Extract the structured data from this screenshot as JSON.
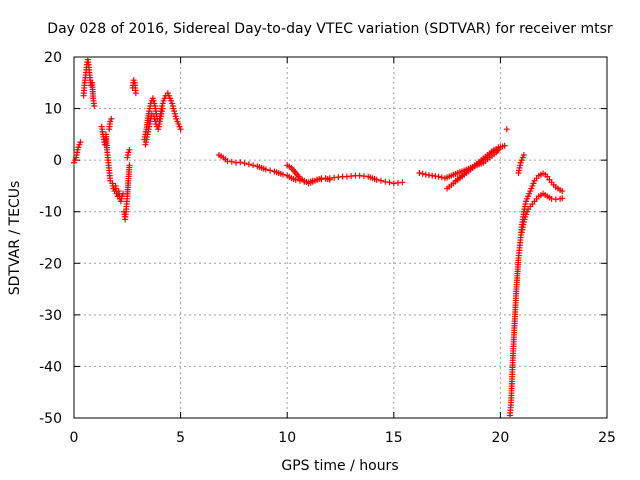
{
  "chart_data": {
    "type": "scatter",
    "title": "Day 028 of 2016, Sidereal Day-to-day VTEC variation (SDTVAR) for receiver mtsr",
    "xlabel": "GPS time / hours",
    "ylabel": "SDTVAR / TECUs",
    "xlim": [
      0,
      25
    ],
    "ylim": [
      -50,
      20
    ],
    "xticks": [
      "0",
      "5",
      "10",
      "15",
      "20",
      "25"
    ],
    "yticks": [
      "20",
      "10",
      "0",
      "-10",
      "-20",
      "-30",
      "-40",
      "-50"
    ],
    "grid": true,
    "marker": "plus",
    "color": "#ff0000",
    "segments": [
      {
        "x": [
          0.0,
          0.1,
          0.15,
          0.2,
          0.25,
          0.3
        ],
        "y": [
          -0.5,
          0.5,
          1.5,
          2.5,
          3.0,
          3.5
        ]
      },
      {
        "x": [
          0.45,
          0.5,
          0.55,
          0.6,
          0.65,
          0.7,
          0.75,
          0.8,
          0.85,
          0.9,
          0.95
        ],
        "y": [
          12.5,
          15.0,
          16.5,
          18.5,
          19.5,
          18.0,
          16.0,
          14.5,
          15.0,
          12.0,
          10.5
        ]
      },
      {
        "x": [
          1.3,
          1.35,
          1.4,
          1.45,
          1.5,
          1.55,
          1.6,
          1.65,
          1.7
        ],
        "y": [
          6.5,
          5.0,
          4.0,
          3.0,
          5.0,
          2.0,
          0.0,
          -2.0,
          -4.0
        ]
      },
      {
        "x": [
          1.65,
          1.7,
          1.75
        ],
        "y": [
          6.0,
          7.5,
          8.0
        ]
      },
      {
        "x": [
          1.8,
          1.85,
          1.9,
          1.95,
          2.0,
          2.05,
          2.1,
          2.15,
          2.2,
          2.25,
          2.3
        ],
        "y": [
          -4.5,
          -5.5,
          -6.0,
          -5.0,
          -6.5,
          -7.0,
          -6.0,
          -7.5,
          -8.0,
          -7.0,
          -6.5
        ]
      },
      {
        "x": [
          2.35,
          2.4,
          2.45,
          2.5,
          2.55,
          2.6
        ],
        "y": [
          -10.0,
          -11.5,
          -9.5,
          -7.0,
          -4.0,
          -1.0
        ]
      },
      {
        "x": [
          2.5,
          2.55,
          2.6
        ],
        "y": [
          0.5,
          1.5,
          2.0
        ]
      },
      {
        "x": [
          2.75,
          2.8,
          2.85,
          2.9
        ],
        "y": [
          14.0,
          15.5,
          15.0,
          13.0
        ]
      },
      {
        "x": [
          3.3,
          3.4,
          3.5,
          3.6,
          3.7,
          3.8,
          3.9,
          4.0,
          4.1,
          4.2,
          4.3,
          4.4,
          4.5,
          4.6,
          4.7,
          4.8,
          4.9,
          5.0
        ],
        "y": [
          4.0,
          6.0,
          9.0,
          11.0,
          12.0,
          10.5,
          8.0,
          7.5,
          10.0,
          11.5,
          12.5,
          13.0,
          12.0,
          11.0,
          9.5,
          8.0,
          7.0,
          6.0
        ]
      },
      {
        "x": [
          3.35,
          3.45,
          3.55,
          3.65,
          3.75,
          3.85,
          3.95,
          4.05,
          4.15
        ],
        "y": [
          3.0,
          5.0,
          7.0,
          9.0,
          8.5,
          7.0,
          6.0,
          8.0,
          10.0
        ]
      },
      {
        "x": [
          6.8,
          7.0,
          7.2,
          7.4,
          7.6,
          7.8,
          8.0,
          8.2,
          8.4,
          8.6,
          8.8,
          9.0,
          9.2,
          9.4,
          9.6,
          9.8,
          10.0,
          10.2,
          10.4,
          10.6,
          10.8,
          11.0,
          11.2,
          11.4,
          11.6,
          11.8,
          12.0,
          12.2,
          12.4,
          12.6,
          12.8,
          13.0,
          13.2,
          13.4,
          13.6,
          13.8,
          14.0,
          14.2,
          14.4,
          14.6,
          14.8,
          15.0,
          15.2,
          15.4
        ],
        "y": [
          1.0,
          0.5,
          -0.2,
          -0.3,
          -0.5,
          -0.4,
          -0.6,
          -0.8,
          -1.0,
          -1.2,
          -1.5,
          -1.8,
          -2.0,
          -2.2,
          -2.5,
          -2.8,
          -3.0,
          -3.5,
          -3.8,
          -4.0,
          -4.2,
          -4.3,
          -4.0,
          -3.8,
          -3.7,
          -3.6,
          -3.5,
          -3.4,
          -3.3,
          -3.2,
          -3.2,
          -3.1,
          -3.0,
          -3.0,
          -3.1,
          -3.2,
          -3.5,
          -3.8,
          -4.0,
          -4.2,
          -4.3,
          -4.5,
          -4.4,
          -4.3
        ]
      },
      {
        "x": [
          10.0,
          10.2,
          10.4,
          10.6,
          10.8,
          11.0,
          11.2,
          11.4,
          11.6,
          11.8,
          12.0
        ],
        "y": [
          -1.0,
          -1.5,
          -2.5,
          -3.5,
          -4.0,
          -4.5,
          -4.2,
          -3.8,
          -3.5,
          -3.5,
          -3.8
        ]
      },
      {
        "x": [
          16.2,
          16.5,
          16.8,
          17.1,
          17.4,
          17.7,
          18.0,
          18.3,
          18.6,
          18.9,
          19.2,
          19.5,
          19.8,
          20.0,
          20.2
        ],
        "y": [
          -2.5,
          -2.8,
          -3.0,
          -3.2,
          -3.5,
          -3.0,
          -2.5,
          -2.0,
          -1.5,
          -1.0,
          -0.5,
          0.5,
          1.5,
          2.5,
          2.8
        ]
      },
      {
        "x": [
          17.5,
          17.8,
          18.1,
          18.4,
          18.7,
          19.0,
          19.3,
          19.6,
          19.9
        ],
        "y": [
          -5.5,
          -4.5,
          -3.5,
          -2.5,
          -1.5,
          -0.5,
          0.5,
          1.5,
          2.5
        ]
      },
      {
        "x": [
          17.9,
          18.2,
          18.5,
          18.8,
          19.1,
          19.4,
          19.7
        ],
        "y": [
          -4.0,
          -3.0,
          -2.0,
          -1.0,
          0.0,
          1.0,
          2.0
        ]
      },
      {
        "x": [
          20.3
        ],
        "y": [
          6.0
        ]
      },
      {
        "x": [
          20.45,
          20.5,
          20.55,
          20.6,
          20.65,
          20.7,
          20.75,
          20.8,
          20.85,
          20.9,
          20.95,
          21.0,
          21.05,
          21.1,
          21.15,
          21.2,
          21.25,
          21.3,
          21.4,
          21.5,
          21.6,
          21.7,
          21.8,
          21.9,
          22.0,
          22.1,
          22.2,
          22.3,
          22.4,
          22.5,
          22.6,
          22.7,
          22.8,
          22.9
        ],
        "y": [
          -49.5,
          -47.0,
          -42.0,
          -37.0,
          -33.0,
          -29.0,
          -25.0,
          -22.0,
          -19.0,
          -17.0,
          -15.0,
          -13.0,
          -11.5,
          -10.0,
          -9.0,
          -8.0,
          -7.5,
          -7.0,
          -6.0,
          -5.0,
          -4.0,
          -3.5,
          -3.0,
          -2.8,
          -2.6,
          -2.8,
          -3.2,
          -3.8,
          -4.3,
          -4.8,
          -5.2,
          -5.5,
          -5.8,
          -6.0
        ]
      },
      {
        "x": [
          21.0,
          21.1,
          21.2,
          21.3,
          21.4,
          21.5,
          21.6,
          21.7,
          21.8,
          21.9,
          22.0,
          22.2,
          22.4,
          22.6,
          22.8,
          22.9
        ],
        "y": [
          -14.0,
          -12.0,
          -10.5,
          -9.5,
          -9.0,
          -8.5,
          -8.0,
          -7.5,
          -7.0,
          -6.8,
          -6.5,
          -7.0,
          -7.5,
          -7.6,
          -7.5,
          -7.4
        ]
      },
      {
        "x": [
          20.85,
          20.9,
          20.95,
          21.0,
          21.05,
          21.1
        ],
        "y": [
          -2.5,
          -1.5,
          -0.5,
          0.0,
          0.5,
          1.0
        ]
      }
    ]
  }
}
